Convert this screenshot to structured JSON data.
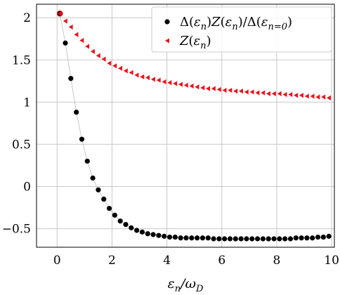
{
  "chart_data": {
    "type": "scatter",
    "xlabel": "εn/ωD",
    "ylabel": "",
    "xlim": [
      -0.75,
      10.1
    ],
    "ylim": [
      -0.72,
      2.16
    ],
    "xticks": [
      0,
      2,
      4,
      6,
      8,
      10
    ],
    "xtick_labels": [
      "0",
      "2",
      "4",
      "6",
      "8",
      "10"
    ],
    "yticks": [
      -0.5,
      0,
      0.5,
      1,
      1.5,
      2
    ],
    "ytick_labels": [
      "−0.5",
      "0",
      "0.5",
      "1",
      "1.5",
      "2"
    ],
    "grid": true,
    "legend_position": "top-right",
    "series": [
      {
        "name": "Δ(εn)Z(εn)/Δ(εn=0)",
        "marker": "circle",
        "color": "#000000",
        "connected": true,
        "x": [
          0.1,
          0.3,
          0.5,
          0.7,
          0.9,
          1.1,
          1.3,
          1.5,
          1.7,
          1.9,
          2.1,
          2.3,
          2.5,
          2.7,
          2.9,
          3.1,
          3.3,
          3.5,
          3.7,
          3.9,
          4.1,
          4.3,
          4.5,
          4.7,
          4.9,
          5.1,
          5.3,
          5.5,
          5.7,
          5.9,
          6.1,
          6.3,
          6.5,
          6.7,
          6.9,
          7.1,
          7.3,
          7.5,
          7.7,
          7.9,
          8.1,
          8.3,
          8.5,
          8.7,
          8.9,
          9.1,
          9.3,
          9.5,
          9.7,
          9.9
        ],
        "y": [
          2.05,
          1.7,
          1.28,
          0.88,
          0.56,
          0.3,
          0.1,
          -0.04,
          -0.15,
          -0.26,
          -0.34,
          -0.41,
          -0.45,
          -0.49,
          -0.52,
          -0.54,
          -0.56,
          -0.57,
          -0.58,
          -0.59,
          -0.6,
          -0.6,
          -0.61,
          -0.61,
          -0.61,
          -0.61,
          -0.61,
          -0.61,
          -0.62,
          -0.62,
          -0.62,
          -0.62,
          -0.62,
          -0.62,
          -0.62,
          -0.62,
          -0.62,
          -0.62,
          -0.62,
          -0.62,
          -0.62,
          -0.62,
          -0.62,
          -0.61,
          -0.61,
          -0.61,
          -0.61,
          -0.6,
          -0.6,
          -0.59
        ]
      },
      {
        "name": "Z(εn)",
        "marker": "triangle-left",
        "color": "#e8141c",
        "connected": false,
        "x": [
          0.1,
          0.3,
          0.5,
          0.7,
          0.9,
          1.1,
          1.3,
          1.5,
          1.7,
          1.9,
          2.1,
          2.3,
          2.5,
          2.7,
          2.9,
          3.1,
          3.3,
          3.5,
          3.7,
          3.9,
          4.1,
          4.3,
          4.5,
          4.7,
          4.9,
          5.1,
          5.3,
          5.5,
          5.7,
          5.9,
          6.1,
          6.3,
          6.5,
          6.7,
          6.9,
          7.1,
          7.3,
          7.5,
          7.7,
          7.9,
          8.1,
          8.3,
          8.5,
          8.7,
          8.9,
          9.1,
          9.3,
          9.5,
          9.7,
          9.9
        ],
        "y": [
          2.05,
          1.96,
          1.89,
          1.8,
          1.73,
          1.66,
          1.6,
          1.55,
          1.51,
          1.46,
          1.43,
          1.4,
          1.37,
          1.35,
          1.32,
          1.3,
          1.29,
          1.27,
          1.26,
          1.24,
          1.23,
          1.22,
          1.21,
          1.2,
          1.19,
          1.18,
          1.17,
          1.16,
          1.16,
          1.15,
          1.14,
          1.14,
          1.13,
          1.13,
          1.12,
          1.12,
          1.11,
          1.11,
          1.1,
          1.1,
          1.1,
          1.09,
          1.09,
          1.08,
          1.08,
          1.07,
          1.07,
          1.06,
          1.06,
          1.05
        ]
      }
    ]
  }
}
